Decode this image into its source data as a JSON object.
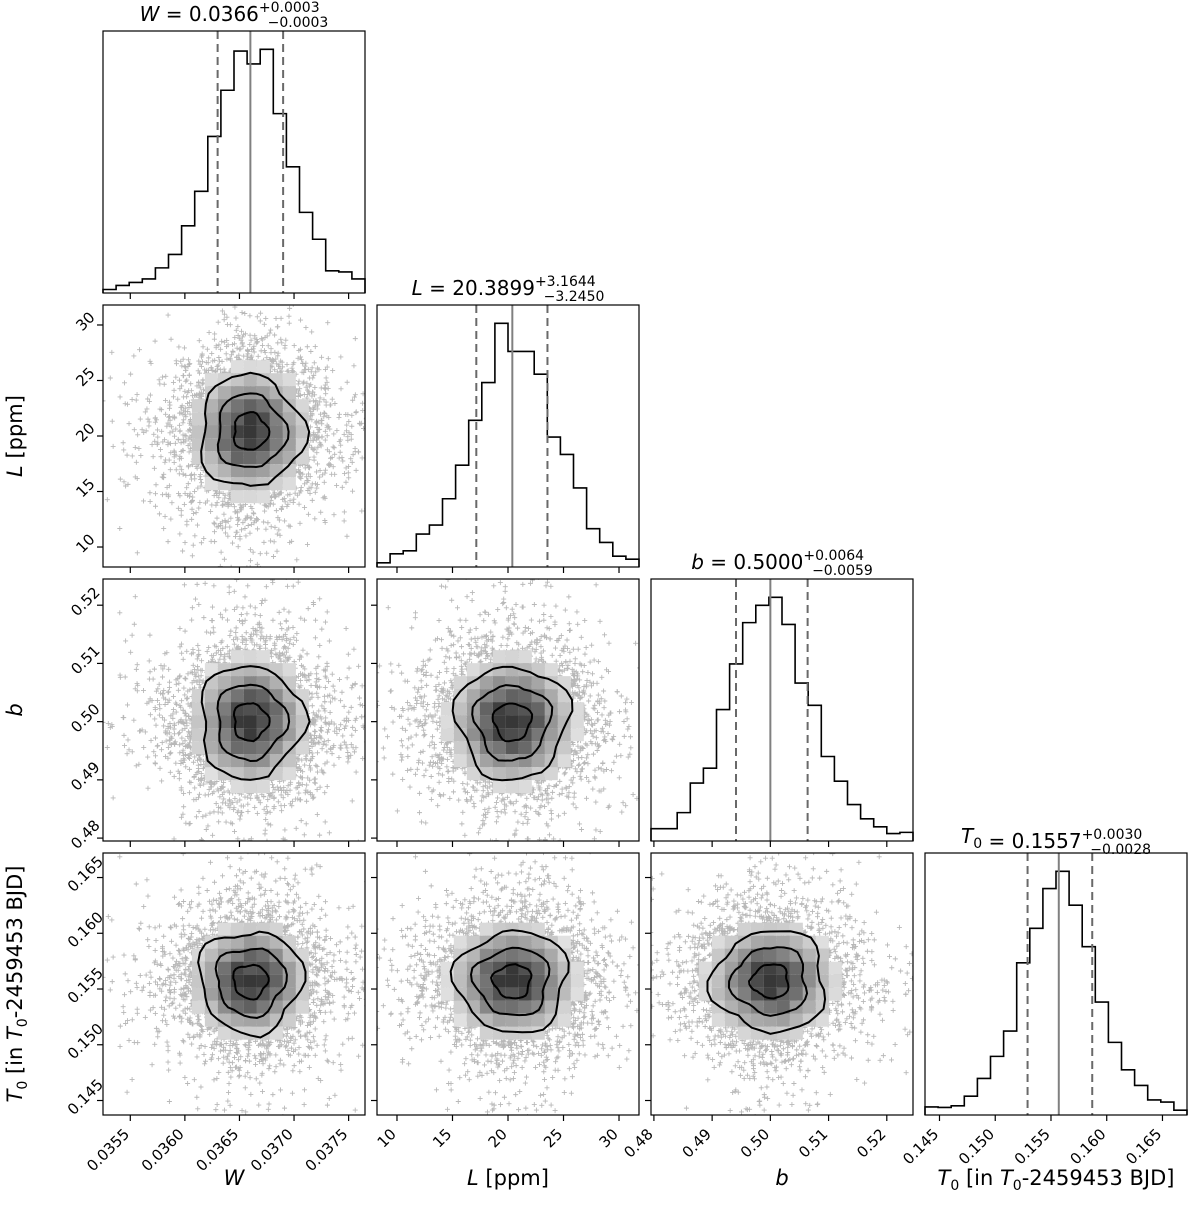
{
  "chart_data": {
    "type": "corner",
    "parameters": [
      {
        "key": "W",
        "symbol": "W",
        "unit": "",
        "median": 0.0366,
        "err_plus": 0.0003,
        "err_minus": 0.0003,
        "title_value": "0.0366",
        "title_plus": "+0.0003",
        "title_minus": "−0.0003",
        "range": [
          0.03525,
          0.03765
        ],
        "ticks": [
          0.0355,
          0.036,
          0.0365,
          0.037,
          0.0375
        ],
        "tick_labels": [
          "0.0355",
          "0.0360",
          "0.0365",
          "0.0370",
          "0.0375"
        ],
        "label": "W",
        "quantile_low": 0.0363,
        "quantile_high": 0.0369
      },
      {
        "key": "L",
        "symbol": "L",
        "unit": "ppm",
        "median": 20.3899,
        "err_plus": 3.1644,
        "err_minus": 3.245,
        "title_value": "20.3899",
        "title_plus": "+3.1644",
        "title_minus": "−3.2450",
        "range": [
          8.2,
          31.8
        ],
        "ticks": [
          10,
          15,
          20,
          25,
          30
        ],
        "tick_labels": [
          "10",
          "15",
          "20",
          "25",
          "30"
        ],
        "label": "L [ppm]",
        "quantile_low": 17.1449,
        "quantile_high": 23.5543
      },
      {
        "key": "b",
        "symbol": "b",
        "unit": "",
        "median": 0.5,
        "err_plus": 0.0064,
        "err_minus": 0.0059,
        "title_value": "0.5000",
        "title_plus": "+0.0064",
        "title_minus": "−0.0059",
        "range": [
          0.4795,
          0.5245
        ],
        "ticks": [
          0.48,
          0.49,
          0.5,
          0.51,
          0.52
        ],
        "tick_labels": [
          "0.48",
          "0.49",
          "0.50",
          "0.51",
          "0.52"
        ],
        "label": "b",
        "quantile_low": 0.4941,
        "quantile_high": 0.5064
      },
      {
        "key": "T0",
        "symbol": "T",
        "subscript": "0",
        "unit": "",
        "median": 0.1557,
        "err_plus": 0.003,
        "err_minus": 0.0028,
        "title_value": "0.1557",
        "title_plus": "+0.0030",
        "title_minus": "−0.0028",
        "range": [
          0.1437,
          0.1672
        ],
        "ticks": [
          0.145,
          0.15,
          0.155,
          0.16,
          0.165
        ],
        "tick_labels": [
          "0.145",
          "0.150",
          "0.155",
          "0.160",
          "0.165"
        ],
        "label": "T0 [in T0-2459453 BJD]",
        "label_prefix": "[in ",
        "label_mid": "-2459453 BJD]",
        "quantile_low": 0.1529,
        "quantile_high": 0.1587
      }
    ],
    "contour_levels": [
      0.5,
      1.0,
      1.5
    ],
    "sample_count": 3200,
    "histogram_bins": 20,
    "colors": {
      "line": "#000000",
      "median": "#808080",
      "quantile": "#696969",
      "background": "#ffffff"
    }
  }
}
